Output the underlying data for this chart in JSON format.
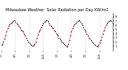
{
  "title": "Milwaukee Weather  Solar Radiation per Day KW/m2",
  "title_fontsize": 3.5,
  "ylim": [
    0,
    9
  ],
  "yticks": [
    1,
    2,
    3,
    4,
    5,
    6,
    7,
    8
  ],
  "ytick_labels": [
    "1",
    "2",
    "3",
    "4",
    "5",
    "6",
    "7",
    "8"
  ],
  "line_color": "#dd0000",
  "dot_color": "#000000",
  "background_color": "#ffffff",
  "grid_color": "#aaaaaa",
  "values": [
    1.2,
    1.5,
    2.0,
    2.8,
    3.5,
    4.5,
    5.2,
    5.8,
    6.3,
    6.5,
    6.7,
    7.0,
    7.2,
    6.8,
    6.5,
    6.2,
    5.8,
    5.5,
    5.0,
    4.8,
    4.5,
    4.0,
    3.5,
    3.0,
    2.5,
    2.0,
    1.8,
    1.5,
    1.2,
    1.0,
    1.2,
    1.5,
    2.0,
    3.0,
    3.8,
    4.5,
    5.0,
    5.5,
    6.0,
    6.5,
    6.8,
    7.0,
    7.2,
    7.0,
    6.5,
    6.0,
    5.8,
    5.5,
    5.2,
    4.8,
    4.5,
    4.0,
    3.5,
    3.0,
    2.8,
    2.5,
    2.0,
    1.8,
    1.5,
    1.2,
    1.0,
    0.8,
    1.5,
    2.5,
    3.5,
    4.5,
    5.2,
    5.8,
    6.2,
    6.5,
    6.8,
    7.0,
    7.2,
    6.8,
    6.5,
    6.0,
    5.5,
    5.0,
    4.5,
    4.0,
    3.5,
    3.0,
    2.8,
    2.5,
    2.0,
    1.8,
    1.5,
    1.2,
    1.0,
    0.8,
    1.2,
    1.8,
    2.5,
    3.2,
    4.0,
    4.8,
    5.5,
    6.0,
    6.5,
    6.8,
    7.0,
    7.2,
    7.0,
    6.5
  ],
  "xtick_positions": [
    0,
    13,
    26,
    39,
    52,
    65,
    78,
    91
  ],
  "xtick_labels": [
    "1/1",
    "4/1",
    "7/1",
    "10/1",
    "1/1",
    "4/1",
    "7/1",
    "10/1"
  ],
  "xtick_fontsize": 2.5,
  "ytick_fontsize": 2.5,
  "vline_positions": [
    0,
    13,
    26,
    39,
    52,
    65,
    78,
    91
  ],
  "dot_size": 0.8,
  "line_width": 0.5,
  "fig_width": 1.6,
  "fig_height": 0.87,
  "dpi": 100
}
